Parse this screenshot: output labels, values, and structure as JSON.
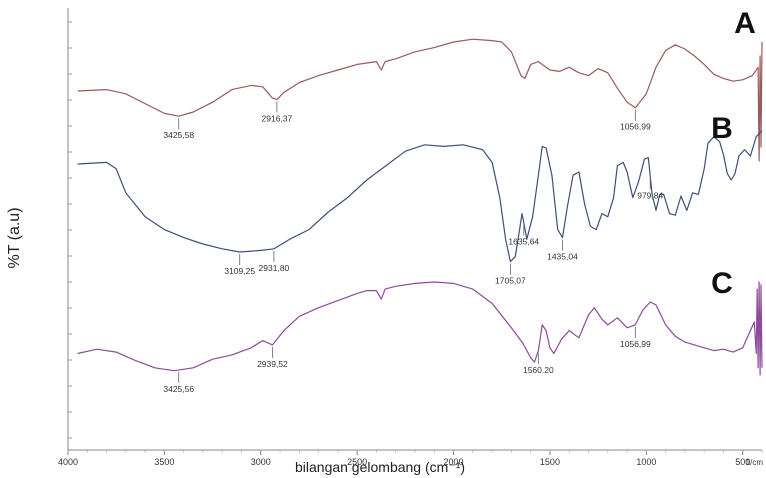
{
  "chart_data": {
    "type": "line",
    "ylabel": "%T (a.u)",
    "xlabel": "bilangan gelombang (cm⁻¹)",
    "xlim": [
      4000,
      400
    ],
    "x_reversed": true,
    "x_ticks": [
      {
        "value": 4000,
        "label": "4000"
      },
      {
        "value": 3500,
        "label": "3500"
      },
      {
        "value": 3000,
        "label": "3000"
      },
      {
        "value": 2500,
        "label": "2500"
      },
      {
        "value": 2000,
        "label": "2000"
      },
      {
        "value": 1500,
        "label": "1500"
      },
      {
        "value": 1000,
        "label": "1000"
      },
      {
        "value": 500,
        "label": "500"
      }
    ],
    "x_tick_clipped": "1/cm",
    "grid": false,
    "series": [
      {
        "name": "A",
        "color": "#9a5a5a",
        "points": [
          [
            3950,
            0.45
          ],
          [
            3800,
            0.44
          ],
          [
            3700,
            0.47
          ],
          [
            3600,
            0.54
          ],
          [
            3500,
            0.61
          ],
          [
            3425,
            0.63
          ],
          [
            3350,
            0.6
          ],
          [
            3250,
            0.53
          ],
          [
            3150,
            0.44
          ],
          [
            3050,
            0.41
          ],
          [
            2990,
            0.42
          ],
          [
            2940,
            0.5
          ],
          [
            2916,
            0.51
          ],
          [
            2880,
            0.46
          ],
          [
            2800,
            0.39
          ],
          [
            2700,
            0.34
          ],
          [
            2600,
            0.3
          ],
          [
            2500,
            0.26
          ],
          [
            2450,
            0.25
          ],
          [
            2400,
            0.24
          ],
          [
            2375,
            0.3
          ],
          [
            2355,
            0.24
          ],
          [
            2300,
            0.22
          ],
          [
            2200,
            0.17
          ],
          [
            2100,
            0.14
          ],
          [
            2000,
            0.1
          ],
          [
            1900,
            0.08
          ],
          [
            1800,
            0.09
          ],
          [
            1750,
            0.1
          ],
          [
            1700,
            0.17
          ],
          [
            1650,
            0.34
          ],
          [
            1630,
            0.36
          ],
          [
            1600,
            0.26
          ],
          [
            1560,
            0.24
          ],
          [
            1500,
            0.3
          ],
          [
            1450,
            0.31
          ],
          [
            1400,
            0.28
          ],
          [
            1350,
            0.32
          ],
          [
            1300,
            0.34
          ],
          [
            1250,
            0.29
          ],
          [
            1200,
            0.32
          ],
          [
            1150,
            0.43
          ],
          [
            1100,
            0.53
          ],
          [
            1056,
            0.57
          ],
          [
            1000,
            0.47
          ],
          [
            950,
            0.28
          ],
          [
            900,
            0.16
          ],
          [
            850,
            0.12
          ],
          [
            800,
            0.15
          ],
          [
            750,
            0.2
          ],
          [
            700,
            0.26
          ],
          [
            650,
            0.33
          ],
          [
            600,
            0.36
          ],
          [
            550,
            0.38
          ],
          [
            500,
            0.37
          ],
          [
            450,
            0.34
          ],
          [
            420,
            0.28
          ],
          [
            415,
            0.95
          ],
          [
            410,
            0.2
          ],
          [
            405,
            0.85
          ],
          [
            400,
            0.1
          ]
        ],
        "annotations": [
          {
            "x": 3425.58,
            "label": "3425,58"
          },
          {
            "x": 2916.37,
            "label": "2916,37"
          },
          {
            "x": 1056.99,
            "label": "1056,99"
          }
        ]
      },
      {
        "name": "B",
        "color": "#3c4f7a",
        "points": [
          [
            3950,
            0.15
          ],
          [
            3800,
            0.14
          ],
          [
            3750,
            0.18
          ],
          [
            3700,
            0.33
          ],
          [
            3600,
            0.48
          ],
          [
            3500,
            0.56
          ],
          [
            3400,
            0.61
          ],
          [
            3300,
            0.65
          ],
          [
            3200,
            0.68
          ],
          [
            3109,
            0.7
          ],
          [
            3000,
            0.69
          ],
          [
            2931,
            0.68
          ],
          [
            2850,
            0.62
          ],
          [
            2750,
            0.56
          ],
          [
            2650,
            0.45
          ],
          [
            2550,
            0.36
          ],
          [
            2450,
            0.25
          ],
          [
            2350,
            0.16
          ],
          [
            2250,
            0.07
          ],
          [
            2150,
            0.03
          ],
          [
            2050,
            0.04
          ],
          [
            1950,
            0.03
          ],
          [
            1850,
            0.06
          ],
          [
            1800,
            0.14
          ],
          [
            1760,
            0.36
          ],
          [
            1730,
            0.62
          ],
          [
            1705,
            0.76
          ],
          [
            1680,
            0.73
          ],
          [
            1660,
            0.58
          ],
          [
            1645,
            0.46
          ],
          [
            1635,
            0.52
          ],
          [
            1620,
            0.62
          ],
          [
            1590,
            0.48
          ],
          [
            1560,
            0.22
          ],
          [
            1540,
            0.04
          ],
          [
            1520,
            0.05
          ],
          [
            1490,
            0.22
          ],
          [
            1460,
            0.56
          ],
          [
            1435,
            0.61
          ],
          [
            1410,
            0.42
          ],
          [
            1380,
            0.22
          ],
          [
            1350,
            0.2
          ],
          [
            1320,
            0.4
          ],
          [
            1290,
            0.54
          ],
          [
            1260,
            0.56
          ],
          [
            1230,
            0.46
          ],
          [
            1200,
            0.48
          ],
          [
            1170,
            0.36
          ],
          [
            1150,
            0.16
          ],
          [
            1120,
            0.14
          ],
          [
            1100,
            0.2
          ],
          [
            1070,
            0.36
          ],
          [
            1040,
            0.26
          ],
          [
            1010,
            0.12
          ],
          [
            990,
            0.11
          ],
          [
            970,
            0.34
          ],
          [
            950,
            0.44
          ],
          [
            930,
            0.34
          ],
          [
            910,
            0.34
          ],
          [
            880,
            0.46
          ],
          [
            850,
            0.47
          ],
          [
            820,
            0.35
          ],
          [
            790,
            0.44
          ],
          [
            760,
            0.33
          ],
          [
            730,
            0.34
          ],
          [
            700,
            0.18
          ],
          [
            680,
            0.02
          ],
          [
            650,
            -0.02
          ],
          [
            620,
            0.01
          ],
          [
            600,
            0.09
          ],
          [
            580,
            0.21
          ],
          [
            560,
            0.25
          ],
          [
            540,
            0.21
          ],
          [
            520,
            0.1
          ],
          [
            490,
            0.06
          ],
          [
            460,
            0.1
          ],
          [
            430,
            -0.02
          ],
          [
            400,
            -0.06
          ]
        ],
        "annotations": [
          {
            "x": 3109.25,
            "label": "3109,25"
          },
          {
            "x": 2931.8,
            "label": "2931,80"
          },
          {
            "x": 1705.07,
            "label": "1705,07"
          },
          {
            "x": 1635.64,
            "label": "1635,64"
          },
          {
            "x": 1435.04,
            "label": "1435,04"
          },
          {
            "x": 979.84,
            "label": "979,84"
          }
        ]
      },
      {
        "name": "C",
        "color": "#8e4b9c",
        "points": [
          [
            3950,
            0.5
          ],
          [
            3850,
            0.47
          ],
          [
            3750,
            0.49
          ],
          [
            3650,
            0.55
          ],
          [
            3550,
            0.6
          ],
          [
            3450,
            0.62
          ],
          [
            3350,
            0.6
          ],
          [
            3250,
            0.54
          ],
          [
            3150,
            0.51
          ],
          [
            3050,
            0.46
          ],
          [
            2990,
            0.41
          ],
          [
            2939,
            0.44
          ],
          [
            2880,
            0.34
          ],
          [
            2800,
            0.24
          ],
          [
            2700,
            0.18
          ],
          [
            2600,
            0.13
          ],
          [
            2500,
            0.08
          ],
          [
            2450,
            0.06
          ],
          [
            2400,
            0.06
          ],
          [
            2375,
            0.12
          ],
          [
            2355,
            0.05
          ],
          [
            2300,
            0.03
          ],
          [
            2200,
            0.01
          ],
          [
            2100,
            0.0
          ],
          [
            2000,
            0.01
          ],
          [
            1900,
            0.05
          ],
          [
            1800,
            0.15
          ],
          [
            1700,
            0.32
          ],
          [
            1640,
            0.43
          ],
          [
            1600,
            0.53
          ],
          [
            1580,
            0.56
          ],
          [
            1560,
            0.48
          ],
          [
            1540,
            0.3
          ],
          [
            1520,
            0.34
          ],
          [
            1500,
            0.46
          ],
          [
            1480,
            0.5
          ],
          [
            1440,
            0.4
          ],
          [
            1400,
            0.34
          ],
          [
            1350,
            0.39
          ],
          [
            1300,
            0.23
          ],
          [
            1270,
            0.18
          ],
          [
            1230,
            0.26
          ],
          [
            1200,
            0.3
          ],
          [
            1150,
            0.25
          ],
          [
            1100,
            0.32
          ],
          [
            1057,
            0.3
          ],
          [
            1020,
            0.2
          ],
          [
            980,
            0.14
          ],
          [
            950,
            0.16
          ],
          [
            900,
            0.3
          ],
          [
            850,
            0.38
          ],
          [
            800,
            0.42
          ],
          [
            750,
            0.44
          ],
          [
            700,
            0.46
          ],
          [
            650,
            0.48
          ],
          [
            600,
            0.47
          ],
          [
            550,
            0.49
          ],
          [
            500,
            0.46
          ],
          [
            460,
            0.34
          ],
          [
            440,
            0.28
          ],
          [
            430,
            0.5
          ],
          [
            425,
            0.05
          ],
          [
            420,
            0.6
          ],
          [
            415,
            0.0
          ],
          [
            410,
            0.65
          ],
          [
            405,
            0.02
          ],
          [
            400,
            0.6
          ]
        ],
        "annotations": [
          {
            "x": 3425.56,
            "label": "3425,56"
          },
          {
            "x": 2939.52,
            "label": "2939,52"
          },
          {
            "x": 1560.2,
            "label": "1560.20"
          },
          {
            "x": 1056.99,
            "label": "1056,99"
          }
        ]
      }
    ]
  }
}
